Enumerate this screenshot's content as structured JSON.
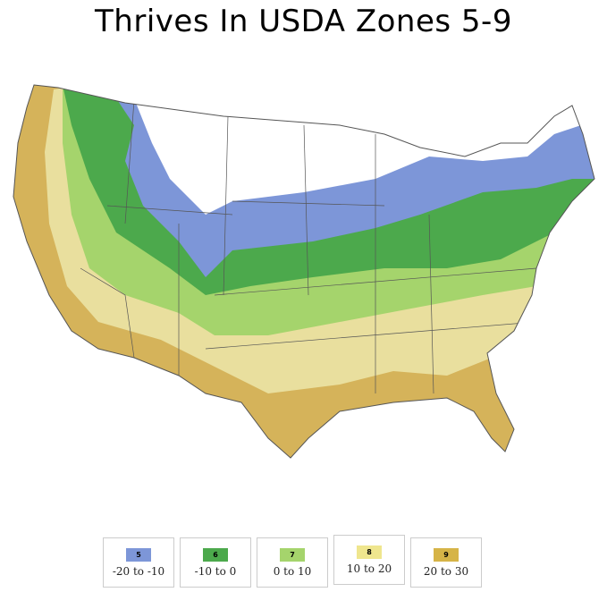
{
  "title": "Thrives In USDA Zones 5-9",
  "colors": {
    "zone5": "#7d96d8",
    "zone6": "#4ca94c",
    "zone7": "#a5d46c",
    "zone8": "#e9df9e",
    "zone9": "#d5b35a",
    "unlisted": "#ffffff",
    "border": "#555555"
  },
  "legend": [
    {
      "zone": "5",
      "range": "-20 to -10",
      "color": "#7d96d8"
    },
    {
      "zone": "6",
      "range": "-10 to 0",
      "color": "#4ca94c"
    },
    {
      "zone": "7",
      "range": "0 to 10",
      "color": "#a5d46c"
    },
    {
      "zone": "8",
      "range": "10 to 20",
      "color": "#efe68e"
    },
    {
      "zone": "9",
      "range": "20 to 30",
      "color": "#d6b447"
    }
  ]
}
